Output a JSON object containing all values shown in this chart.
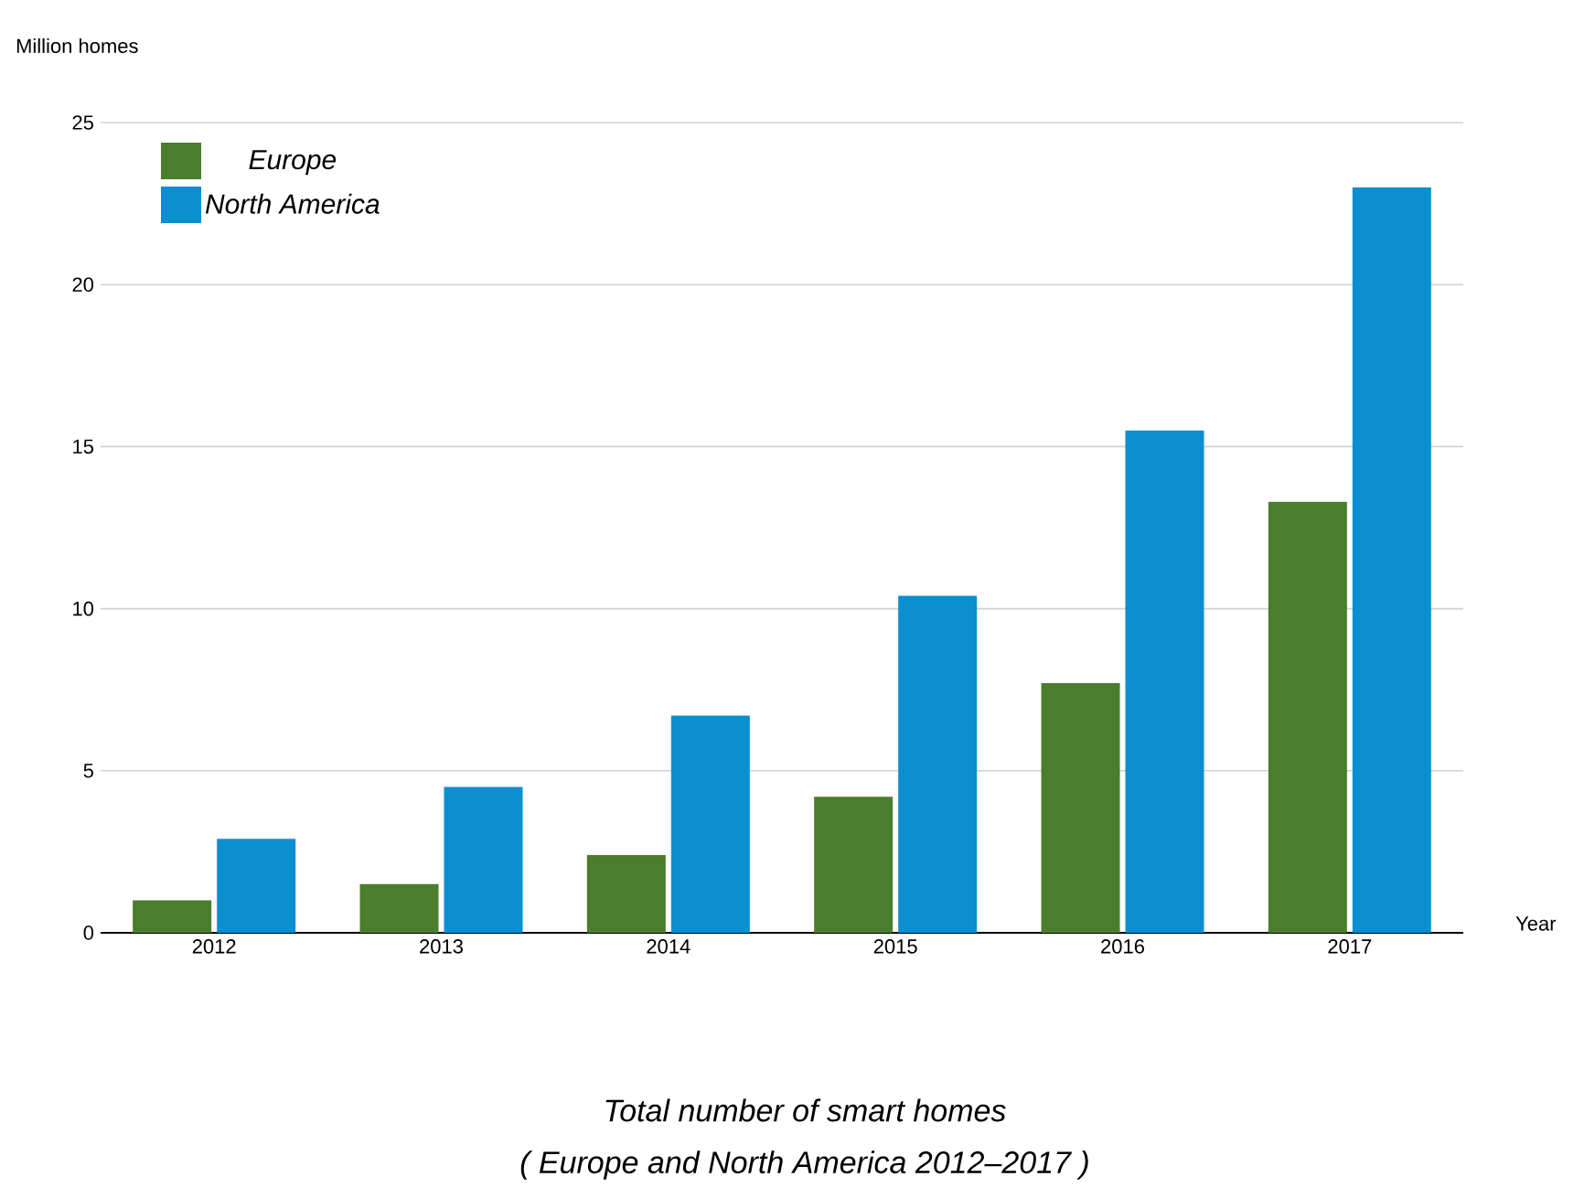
{
  "chart_data": {
    "type": "bar",
    "title": "Total number of smart homes",
    "subtitle": "( Europe and North America 2012–2017 )",
    "xlabel": "Year",
    "ylabel": "Million homes",
    "categories": [
      "2012",
      "2013",
      "2014",
      "2015",
      "2016",
      "2017"
    ],
    "series": [
      {
        "name": "Europe",
        "color": "#4a7d2c",
        "values": [
          1.0,
          1.5,
          2.4,
          4.2,
          7.7,
          13.3
        ]
      },
      {
        "name": "North America",
        "color": "#0b8fd0",
        "values": [
          2.9,
          4.5,
          6.7,
          10.4,
          15.5,
          23.0
        ]
      }
    ],
    "ylim": [
      0,
      25
    ],
    "yticks": [
      0,
      5,
      10,
      15,
      20,
      25
    ],
    "grid": "y",
    "legend": "top left"
  }
}
